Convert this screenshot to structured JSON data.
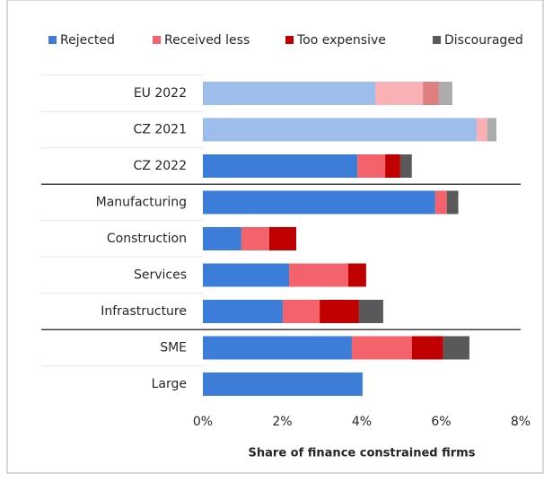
{
  "chart_data": {
    "type": "bar",
    "orientation": "horizontal",
    "stacked": true,
    "x_label": "Share of finance constrained firms",
    "categories": [
      "EU 2022",
      "CZ 2021",
      "CZ 2022",
      "Manufacturing",
      "Construction",
      "Services",
      "Infrastructure",
      "SME",
      "Large"
    ],
    "bar_opacity": [
      0.5,
      0.5,
      1,
      1,
      1,
      1,
      1,
      1,
      1
    ],
    "series": [
      {
        "name": "Rejected",
        "color": "#3b7dd8",
        "values": [
          4.34,
          6.89,
          3.89,
          5.85,
          0.97,
          2.17,
          2.01,
          3.75,
          4.02
        ]
      },
      {
        "name": "Received less",
        "color": "#f4636b",
        "values": [
          1.2,
          0.27,
          0.7,
          0.29,
          0.7,
          1.49,
          0.93,
          1.51,
          0
        ]
      },
      {
        "name": "Too expensive",
        "color": "#c00000",
        "values": [
          0.4,
          0,
          0.38,
          0,
          0.68,
          0.45,
          0.99,
          0.79,
          0
        ]
      },
      {
        "name": "Discouraged",
        "color": "#595959",
        "values": [
          0.34,
          0.23,
          0.29,
          0.29,
          0,
          0,
          0.61,
          0.66,
          0
        ]
      }
    ],
    "xlim": [
      0,
      8
    ],
    "xticks": [
      {
        "value": 0,
        "label": "0%"
      },
      {
        "value": 2,
        "label": "2%"
      },
      {
        "value": 4,
        "label": "4%"
      },
      {
        "value": 6,
        "label": "6%"
      },
      {
        "value": 8,
        "label": "8%"
      }
    ],
    "legend": "top"
  }
}
